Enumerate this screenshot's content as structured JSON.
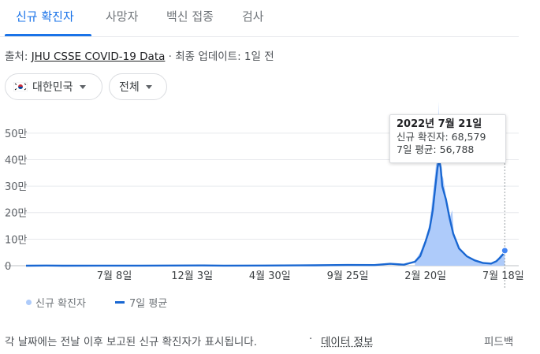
{
  "tabs": [
    {
      "label": "신규 확진자",
      "active": true
    },
    {
      "label": "사망자",
      "active": false
    },
    {
      "label": "백신 접종",
      "active": false
    },
    {
      "label": "검사",
      "active": false
    }
  ],
  "source": {
    "prefix": "출처: ",
    "link": "JHU CSSE COVID-19 Data",
    "suffix": " · 최종 업데이트: 1일 전"
  },
  "filters": {
    "country": "대한민국",
    "range": "전체"
  },
  "tooltip": {
    "date": "2022년 7월 21일",
    "daily_line": "신규 확진자: 68,579",
    "avg_line": "7일 평균: 56,788"
  },
  "legend": {
    "daily": "신규 확진자",
    "avg": "7일 평균"
  },
  "footer": {
    "note": "각 날짜에는 전날 이후 보고된 신규 확진자가 표시됩니다.",
    "sep": "·",
    "info_link": "데이터 정보",
    "feedback": "피드백"
  },
  "colors": {
    "accent": "#1a73e8",
    "avg_line": "#1967d2",
    "daily_fill": "#aecbfa"
  },
  "chart_data": {
    "type": "area",
    "y_tick_labels": [
      "0",
      "10만",
      "20만",
      "30만",
      "40만",
      "50만"
    ],
    "y_ticks": [
      0,
      100000,
      200000,
      300000,
      400000,
      500000
    ],
    "ylim": [
      0,
      550000
    ],
    "x_tick_labels": [
      "7월 8일",
      "12월 3일",
      "4월 30일",
      "9월 25일",
      "2월 20일",
      "7월 18일"
    ],
    "x_tick_dates": [
      "2020-07-08",
      "2020-12-03",
      "2021-04-30",
      "2021-09-25",
      "2022-02-20",
      "2022-07-18"
    ],
    "xlim": [
      "2020-01-22",
      "2022-07-22"
    ],
    "grid": true,
    "series": [
      {
        "name": "7일 평균",
        "style": "line",
        "points": [
          [
            "2020-01-22",
            0
          ],
          [
            "2020-03-01",
            600
          ],
          [
            "2020-04-01",
            100
          ],
          [
            "2020-08-28",
            300
          ],
          [
            "2020-12-25",
            1000
          ],
          [
            "2021-02-01",
            400
          ],
          [
            "2021-04-20",
            700
          ],
          [
            "2021-07-25",
            1600
          ],
          [
            "2021-09-25",
            2800
          ],
          [
            "2021-11-15",
            2500
          ],
          [
            "2021-12-15",
            7000
          ],
          [
            "2022-01-10",
            4000
          ],
          [
            "2022-01-31",
            15000
          ],
          [
            "2022-02-10",
            36000
          ],
          [
            "2022-02-20",
            90000
          ],
          [
            "2022-02-28",
            140000
          ],
          [
            "2022-03-06",
            210000
          ],
          [
            "2022-03-11",
            300000
          ],
          [
            "2022-03-15",
            370000
          ],
          [
            "2022-03-18",
            400000
          ],
          [
            "2022-03-21",
            370000
          ],
          [
            "2022-03-24",
            300000
          ],
          [
            "2022-03-31",
            250000
          ],
          [
            "2022-04-07",
            180000
          ],
          [
            "2022-04-14",
            120000
          ],
          [
            "2022-04-25",
            65000
          ],
          [
            "2022-05-10",
            35000
          ],
          [
            "2022-05-25",
            20000
          ],
          [
            "2022-06-10",
            10000
          ],
          [
            "2022-06-25",
            8000
          ],
          [
            "2022-07-05",
            17000
          ],
          [
            "2022-07-12",
            30000
          ],
          [
            "2022-07-18",
            44000
          ],
          [
            "2022-07-21",
            56788
          ]
        ]
      },
      {
        "name": "신규 확진자",
        "style": "area",
        "points": [
          [
            "2022-01-31",
            18000
          ],
          [
            "2022-02-10",
            50000
          ],
          [
            "2022-02-20",
            100000
          ],
          [
            "2022-02-28",
            160000
          ],
          [
            "2022-03-05",
            250000
          ],
          [
            "2022-03-09",
            320000
          ],
          [
            "2022-03-12",
            380000
          ],
          [
            "2022-03-15",
            400000
          ],
          [
            "2022-03-17",
            620000
          ],
          [
            "2022-03-19",
            380000
          ],
          [
            "2022-03-22",
            350000
          ],
          [
            "2022-03-26",
            330000
          ],
          [
            "2022-03-31",
            260000
          ],
          [
            "2022-04-07",
            180000
          ],
          [
            "2022-04-12",
            210000
          ],
          [
            "2022-04-15",
            120000
          ],
          [
            "2022-04-25",
            60000
          ],
          [
            "2022-05-10",
            30000
          ],
          [
            "2022-05-25",
            20000
          ],
          [
            "2022-06-10",
            10000
          ],
          [
            "2022-06-25",
            8000
          ],
          [
            "2022-07-05",
            19000
          ],
          [
            "2022-07-12",
            38000
          ],
          [
            "2022-07-18",
            48000
          ],
          [
            "2022-07-21",
            68579
          ]
        ]
      }
    ],
    "highlight": {
      "date": "2022-07-21",
      "daily": 68579,
      "avg": 56788
    }
  }
}
